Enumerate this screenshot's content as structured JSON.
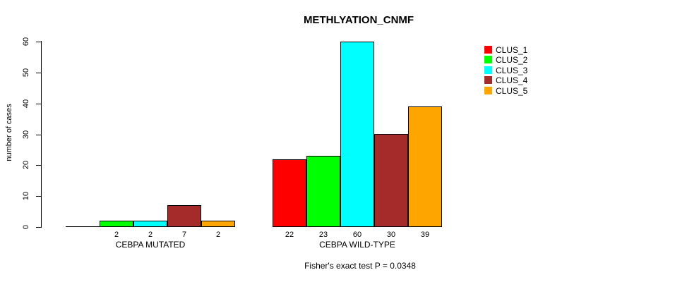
{
  "chart_data": {
    "type": "bar",
    "title": "METHLYATION_CNMF",
    "ylabel": "number of cases",
    "xlabel": "",
    "ylim": [
      0,
      60
    ],
    "yticks": [
      0,
      10,
      20,
      30,
      40,
      50,
      60
    ],
    "grid": false,
    "legend_position": "right",
    "series": [
      {
        "name": "CLUS_1",
        "color": "#FF0000"
      },
      {
        "name": "CLUS_2",
        "color": "#00FF00"
      },
      {
        "name": "CLUS_3",
        "color": "#00FFFF"
      },
      {
        "name": "CLUS_4",
        "color": "#A52A2A"
      },
      {
        "name": "CLUS_5",
        "color": "#FFA500"
      }
    ],
    "groups": [
      {
        "label": "CEBPA MUTATED",
        "values": [
          0,
          2,
          2,
          7,
          2
        ],
        "bar_labels": [
          "",
          "2",
          "2",
          "7",
          "2"
        ]
      },
      {
        "label": "CEBPA WILD-TYPE",
        "values": [
          22,
          23,
          60,
          30,
          39
        ],
        "bar_labels": [
          "22",
          "23",
          "60",
          "30",
          "39"
        ]
      }
    ],
    "annotation": "Fisher's exact test P = 0.0348"
  }
}
